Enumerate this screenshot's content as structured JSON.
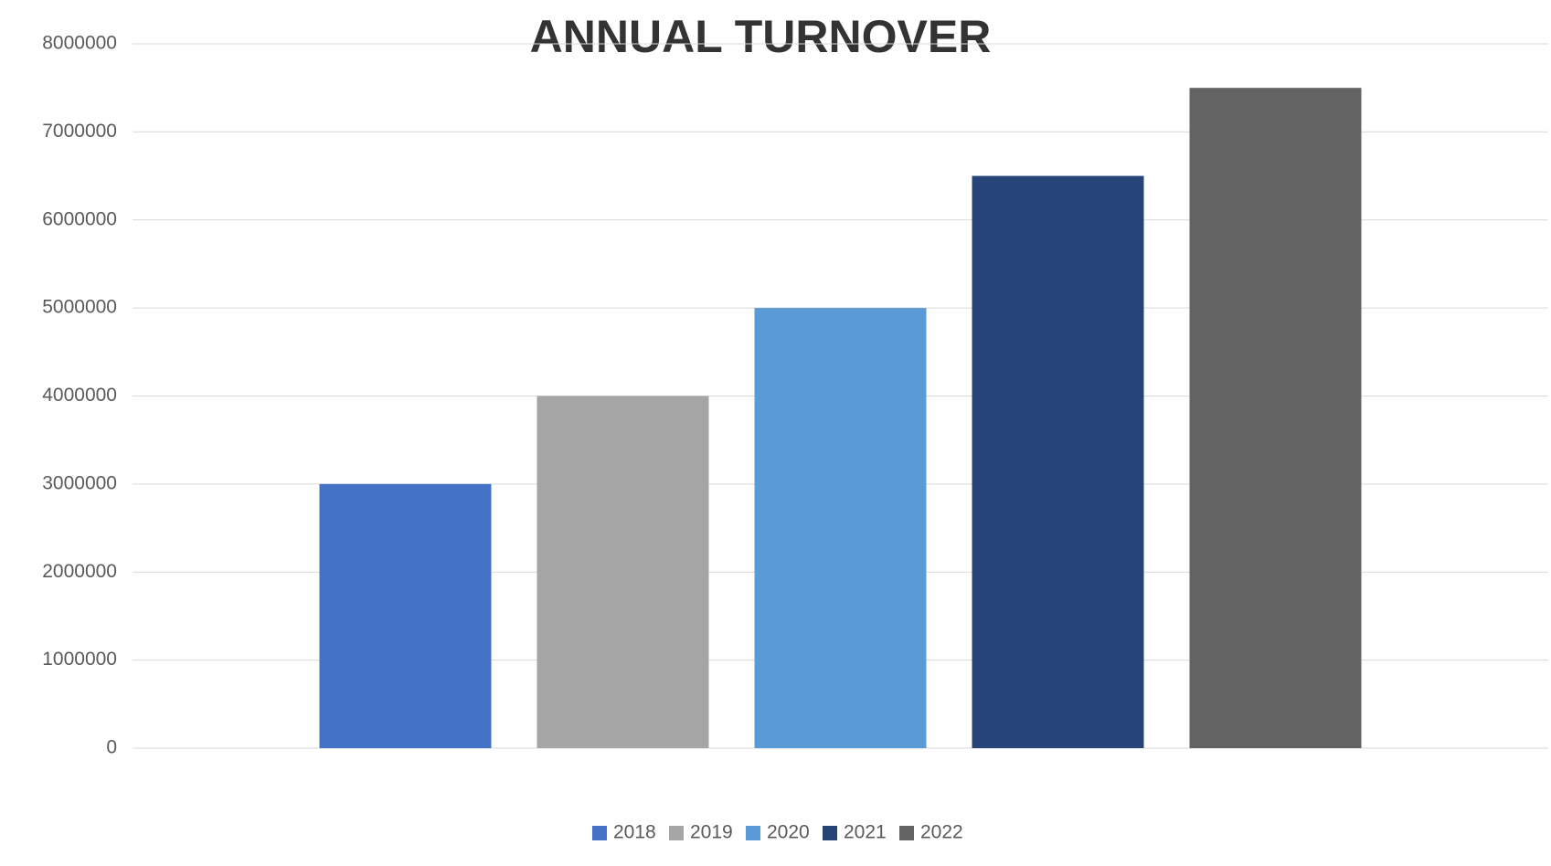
{
  "chart_data": {
    "type": "bar",
    "title": "ANNUAL TURNOVER",
    "categories": [
      null
    ],
    "series": [
      {
        "name": "2018",
        "color": "#4472c4",
        "values": [
          3000000
        ]
      },
      {
        "name": "2019",
        "color": "#a5a5a5",
        "values": [
          4000000
        ]
      },
      {
        "name": "2020",
        "color": "#5b9bd5",
        "values": [
          5000000
        ]
      },
      {
        "name": "2021",
        "color": "#264478",
        "values": [
          6500000
        ]
      },
      {
        "name": "2022",
        "color": "#636363",
        "values": [
          7500000
        ]
      }
    ],
    "ylim": [
      0,
      8000000
    ],
    "yticks": [
      0,
      1000000,
      2000000,
      3000000,
      4000000,
      5000000,
      6000000,
      7000000,
      8000000
    ],
    "grid": true,
    "legend": "bottom"
  }
}
